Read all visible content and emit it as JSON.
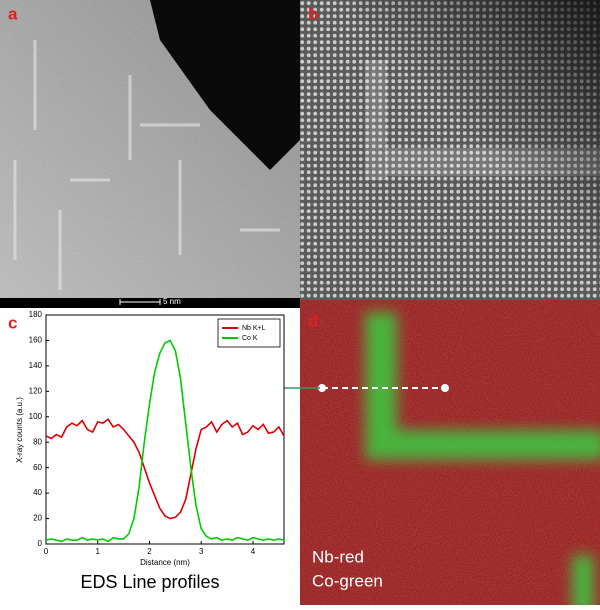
{
  "panels": {
    "a": {
      "label": "a",
      "scale_bar": "5 nm"
    },
    "b": {
      "label": "b"
    },
    "c": {
      "label": "c",
      "caption": "EDS Line profiles"
    },
    "d": {
      "label": "d",
      "legend_lines": [
        "Nb-red",
        "Co-green"
      ]
    }
  },
  "chart_data": {
    "type": "line",
    "xlabel": "Distance (nm)",
    "ylabel": "X-ray counts (a.u.)",
    "x": [
      0,
      0.1,
      0.2,
      0.3,
      0.4,
      0.5,
      0.6,
      0.7,
      0.8,
      0.9,
      1.0,
      1.1,
      1.2,
      1.3,
      1.4,
      1.5,
      1.6,
      1.7,
      1.8,
      1.9,
      2.0,
      2.1,
      2.2,
      2.3,
      2.4,
      2.5,
      2.6,
      2.7,
      2.8,
      2.9,
      3.0,
      3.1,
      3.2,
      3.3,
      3.4,
      3.5,
      3.6,
      3.7,
      3.8,
      3.9,
      4.0,
      4.1,
      4.2,
      4.3,
      4.4,
      4.5,
      4.6
    ],
    "series": [
      {
        "name": "Nb K+L",
        "color": "#e00000",
        "values": [
          85,
          83,
          86,
          84,
          92,
          95,
          93,
          97,
          90,
          88,
          96,
          95,
          98,
          92,
          94,
          90,
          85,
          80,
          72,
          60,
          48,
          38,
          28,
          22,
          20,
          21,
          25,
          35,
          55,
          75,
          90,
          92,
          96,
          88,
          94,
          97,
          92,
          95,
          86,
          88,
          93,
          90,
          94,
          87,
          88,
          92,
          85
        ]
      },
      {
        "name": "Co K",
        "color": "#00cc00",
        "values": [
          3,
          4,
          3,
          2,
          4,
          3,
          3,
          5,
          3,
          4,
          3,
          4,
          2,
          5,
          4,
          4,
          8,
          20,
          45,
          80,
          110,
          135,
          150,
          158,
          160,
          152,
          130,
          95,
          60,
          30,
          12,
          6,
          4,
          5,
          3,
          4,
          3,
          5,
          4,
          3,
          5,
          4,
          3,
          4,
          3,
          4,
          3
        ]
      }
    ],
    "xlim": [
      0,
      4.6
    ],
    "xticks": [
      0,
      1,
      2,
      3,
      4
    ],
    "ylim": [
      0,
      180
    ],
    "yticks": [
      0,
      20,
      40,
      60,
      80,
      100,
      120,
      140,
      160,
      180
    ],
    "legend": "upper right"
  }
}
